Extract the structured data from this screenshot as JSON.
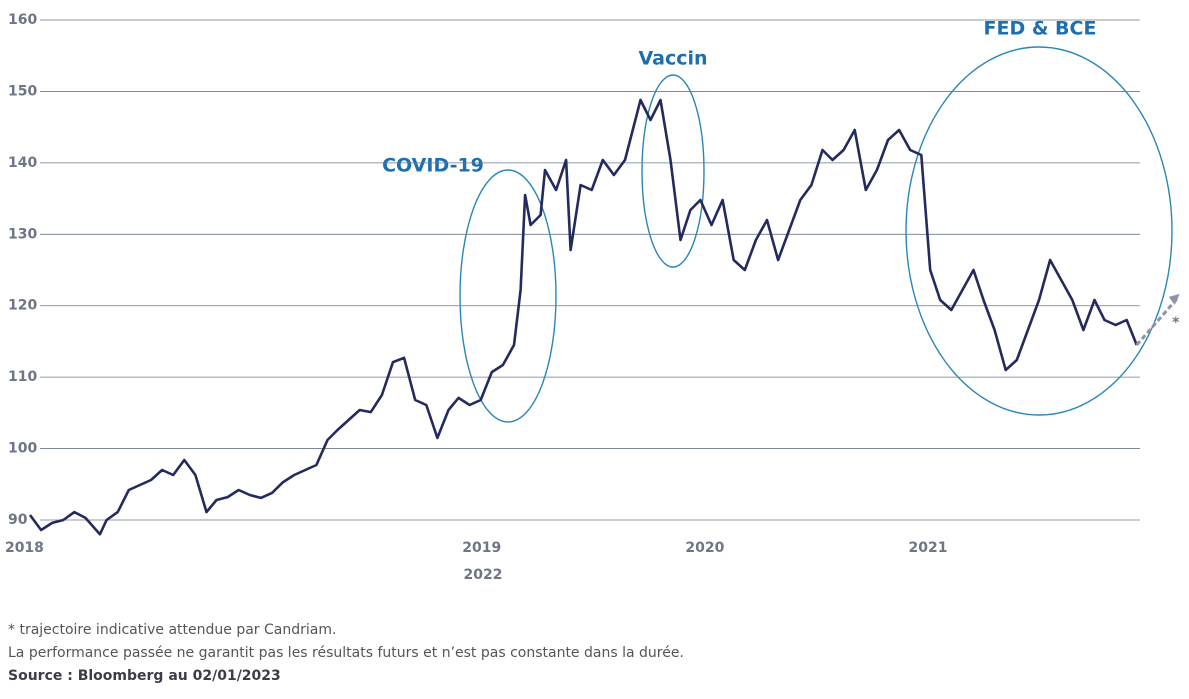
{
  "chart_data": {
    "type": "line",
    "x": [
      0,
      1.0,
      2.0,
      3.0,
      4.0,
      5.0,
      6.3,
      6.9,
      7.9,
      8.9,
      9.9,
      10.9,
      11.9,
      12.9,
      13.9,
      14.9,
      15.9,
      16.8,
      17.8,
      18.8,
      19.8,
      20.8,
      21.8,
      22.8,
      23.8,
      24.8,
      25.8,
      26.8,
      27.7,
      28.7,
      29.7,
      30.7,
      31.7,
      32.7,
      33.7,
      34.7,
      35.7,
      36.7,
      37.7,
      38.6,
      39.6,
      40.6,
      41.6,
      42.6,
      43.6,
      44.2,
      44.6,
      45.1,
      46.0,
      46.4,
      47.4,
      48.3,
      48.7,
      49.6,
      50.6,
      51.6,
      52.6,
      53.6,
      55.0,
      55.9,
      56.8,
      57.7,
      58.6,
      59.5,
      60.4,
      61.4,
      62.4,
      63.4,
      64.4,
      65.4,
      66.4,
      67.4,
      68.4,
      69.4,
      70.4,
      71.4,
      72.3,
      73.3,
      74.3,
      75.3,
      76.3,
      77.3,
      78.3,
      79.3,
      80.3,
      81.1,
      82.0,
      83.0,
      84.0,
      85.0,
      85.9,
      86.9,
      87.9,
      88.9,
      89.9,
      90.9,
      91.9,
      92.9,
      93.9,
      94.9,
      95.9,
      96.8,
      97.8,
      98.8,
      99.7
    ],
    "series": [
      {
        "color": "#232b5e",
        "values": [
          90.7,
          88.6,
          89.6,
          90.0,
          91.1,
          90.3,
          88.0,
          90.0,
          91.1,
          94.2,
          94.9,
          95.6,
          97.0,
          96.3,
          98.4,
          96.3,
          91.1,
          92.8,
          93.2,
          94.2,
          93.5,
          93.1,
          93.8,
          95.3,
          96.3,
          97.0,
          97.7,
          101.2,
          102.6,
          104.0,
          105.4,
          105.1,
          107.5,
          112.1,
          112.7,
          106.8,
          106.1,
          101.5,
          105.4,
          107.1,
          106.1,
          106.8,
          110.7,
          111.7,
          114.5,
          122.2,
          135.5,
          131.3,
          132.7,
          139.0,
          136.2,
          140.4,
          127.8,
          136.9,
          136.2,
          140.4,
          138.3,
          140.4,
          148.8,
          146.0,
          148.8,
          140.4,
          129.2,
          133.4,
          134.8,
          131.3,
          134.8,
          126.4,
          125.0,
          129.2,
          132.0,
          126.4,
          130.6,
          134.8,
          136.9,
          141.8,
          140.4,
          141.8,
          144.6,
          136.2,
          139.0,
          143.2,
          144.6,
          141.8,
          141.1,
          125.0,
          120.8,
          119.4,
          122.2,
          125.0,
          120.8,
          116.6,
          111.0,
          112.4,
          116.6,
          120.8,
          126.4,
          123.6,
          120.8,
          116.6,
          120.8,
          118.0,
          117.3,
          118.0,
          114.5
        ]
      },
      {
        "name": "*",
        "color": "#8c93aa",
        "dashed": true,
        "x": [
          99.7,
          103.4
        ],
        "values": [
          114.5,
          121.1
        ]
      }
    ],
    "xlim": [
      0,
      100
    ],
    "xticks": [
      {
        "value": -0.5,
        "label": "2018"
      },
      {
        "value": 40.7,
        "label": "2019"
      },
      {
        "value": 60.8,
        "label": "2020"
      },
      {
        "value": 80.9,
        "label": "2021"
      }
    ],
    "x_note": "2022",
    "ylim": [
      87,
      161
    ],
    "yticks": [
      90,
      100,
      110,
      120,
      130,
      140,
      150,
      160
    ],
    "grid": true,
    "annotations": [
      "COVID-19",
      "Vaccin",
      "FED & BCE"
    ]
  },
  "footer": {
    "note": "* trajectoire indicative attendue par Candriam.",
    "disclaimer": "La performance passée ne garantit pas les résultats futurs et n’est pas constante dans la durée.",
    "source": "Source : Bloomberg au 02/01/2023"
  }
}
